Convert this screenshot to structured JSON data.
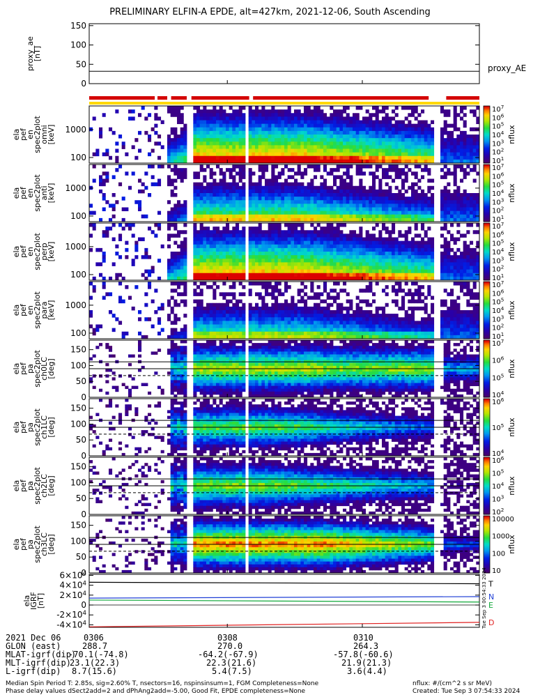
{
  "title": "PRELIMINARY ELFIN-A EPDE, alt=427km, 2021-12-06, South Ascending",
  "chart_data": [
    {
      "type": "line",
      "panel": "proxy_ae",
      "ylabel_lines": [
        "proxy_ae",
        "[nT]"
      ],
      "yticks": [
        "0",
        "50",
        "100",
        "150"
      ],
      "ylim": [
        0,
        155
      ],
      "series": [
        {
          "name": "proxy_AE",
          "x": [
            0,
            1
          ],
          "values": [
            32,
            32
          ],
          "color": "#000000"
        }
      ]
    },
    {
      "type": "heatmap",
      "panel": "ela_pef_en_spec2plot_omni",
      "ylabel_lines": [
        "ela",
        "pef",
        "en",
        "spec2plot",
        "omni",
        "[keV]"
      ],
      "yticks": [
        "100",
        "1000"
      ],
      "ylim": [
        63,
        7000
      ],
      "scale": "log",
      "colorbar": {
        "label": "nflux",
        "ticks": [
          "10^1",
          "10^2",
          "10^3",
          "10^4",
          "10^5",
          "10^6",
          "10^7"
        ]
      }
    },
    {
      "type": "heatmap",
      "panel": "ela_pef_en_spec2plot_anti",
      "ylabel_lines": [
        "ela",
        "pef",
        "en",
        "spec2plot",
        "anti",
        "[keV]"
      ],
      "yticks": [
        "100",
        "1000"
      ],
      "ylim": [
        63,
        7000
      ],
      "scale": "log",
      "colorbar": {
        "label": "nflux",
        "ticks": [
          "10^1",
          "10^2",
          "10^3",
          "10^4",
          "10^5",
          "10^6",
          "10^7"
        ]
      }
    },
    {
      "type": "heatmap",
      "panel": "ela_pef_en_spec2plot_perp",
      "ylabel_lines": [
        "ela",
        "pef",
        "en",
        "spec2plot",
        "perp",
        "[keV]"
      ],
      "yticks": [
        "100",
        "1000"
      ],
      "ylim": [
        63,
        7000
      ],
      "scale": "log",
      "colorbar": {
        "label": "nflux",
        "ticks": [
          "10^1",
          "10^2",
          "10^3",
          "10^4",
          "10^5",
          "10^6",
          "10^7"
        ]
      }
    },
    {
      "type": "heatmap",
      "panel": "ela_pef_en_spec2plot_para",
      "ylabel_lines": [
        "ela",
        "pef",
        "en",
        "spec2plot",
        "para",
        "[keV]"
      ],
      "yticks": [
        "100",
        "1000"
      ],
      "ylim": [
        63,
        7000
      ],
      "scale": "log",
      "colorbar": {
        "label": "nflux",
        "ticks": [
          "10^1",
          "10^2",
          "10^3",
          "10^4",
          "10^5",
          "10^6",
          "10^7"
        ]
      }
    },
    {
      "type": "heatmap",
      "panel": "ela_pef_pa_spec2plot_ch0LC",
      "ylabel_lines": [
        "ela",
        "pef",
        "pa",
        "spec2plot",
        "ch0LC",
        "[deg]"
      ],
      "yticks": [
        "0",
        "50",
        "100",
        "150"
      ],
      "ylim": [
        0,
        180
      ],
      "colorbar": {
        "label": "nflux",
        "ticks": [
          "10^4",
          "10^5",
          "10^6",
          "10^7"
        ]
      }
    },
    {
      "type": "heatmap",
      "panel": "ela_pef_pa_spec2plot_ch1LC",
      "ylabel_lines": [
        "ela",
        "pef",
        "pa",
        "spec2plot",
        "ch1LC",
        "[deg]"
      ],
      "yticks": [
        "0",
        "50",
        "100",
        "150"
      ],
      "ylim": [
        0,
        180
      ],
      "colorbar": {
        "label": "nflux",
        "ticks": [
          "10^4",
          "10^5",
          "10^6"
        ]
      }
    },
    {
      "type": "heatmap",
      "panel": "ela_pef_pa_spec2plot_ch2LC",
      "ylabel_lines": [
        "ela",
        "pef",
        "pa",
        "spec2plot",
        "ch2LC",
        "[deg]"
      ],
      "yticks": [
        "0",
        "50",
        "100",
        "150"
      ],
      "ylim": [
        0,
        180
      ],
      "colorbar": {
        "label": "nflux",
        "ticks": [
          "10^2",
          "10^3",
          "10^4",
          "10^5",
          "10^6"
        ]
      }
    },
    {
      "type": "heatmap",
      "panel": "ela_pef_pa_spec2plot_ch3LC",
      "ylabel_lines": [
        "ela",
        "pef",
        "pa",
        "spec2plot",
        "ch3LC",
        "[deg]"
      ],
      "yticks": [
        "0",
        "50",
        "100",
        "150"
      ],
      "ylim": [
        0,
        180
      ],
      "colorbar": {
        "label": "nflux",
        "ticks": [
          "10",
          "100",
          "1000",
          "10000"
        ]
      }
    },
    {
      "type": "line",
      "panel": "ela_IGRF",
      "ylabel_lines": [
        "ela",
        "IGRF",
        "[nT]"
      ],
      "yticks": [
        "-4×10^4",
        "-2×10^4",
        "0",
        "2×10^4",
        "4×10^4",
        "6×10^4"
      ],
      "ylim": [
        -45000,
        62000
      ],
      "series": [
        {
          "name": "T",
          "color": "#000000",
          "x": [
            0,
            1
          ],
          "values": [
            46000,
            43000
          ]
        },
        {
          "name": "N",
          "color": "#1f3fd6",
          "x": [
            0,
            1
          ],
          "values": [
            14000,
            17000
          ]
        },
        {
          "name": "E",
          "color": "#11a83a",
          "x": [
            0,
            1
          ],
          "values": [
            10000,
            6000
          ]
        },
        {
          "name": "D",
          "color": "#e02020",
          "x": [
            0,
            1
          ],
          "values": [
            -44000,
            -35000
          ]
        }
      ]
    }
  ],
  "ephemeris": {
    "header": [
      "2021 Dec 06",
      "0306",
      "0308",
      "0310"
    ],
    "rows": [
      {
        "label": "GLON (east)",
        "values": [
          "288.7",
          "270.0",
          "264.3"
        ]
      },
      {
        "label": "MLAT-igrf(dip)",
        "values": [
          "-70.1(-74.8)",
          "-64.2(-67.9)",
          "-57.8(-60.6)"
        ]
      },
      {
        "label": "MLT-igrf(dip)",
        "values": [
          "23.1(22.3)",
          "22.3(21.6)",
          "21.9(21.3)"
        ]
      },
      {
        "label": "L-igrf(dip)",
        "values": [
          "8.7(15.6)",
          "5.4(7.5)",
          "3.6(4.4)"
        ]
      }
    ]
  },
  "footer": {
    "line1": "Median Spin Period T: 2.85s, sig=2.60% T, nsectors=16, nspinsinsum=1, FGM Completeness=None",
    "line2": "Phase delay values dSect2add=2 and dPhAng2add=-5.00, Good Fit, EPDE completeness=None",
    "units": "nflux: #/(cm^2 s sr MeV)",
    "created": "Created: Tue Sep  3 07:54:33 2024",
    "side_stamp": "Tue Sep  3 00:54:33 2024"
  },
  "colors": {
    "coverage_red": "#d40000",
    "coverage_yellow": "#ffd800"
  }
}
